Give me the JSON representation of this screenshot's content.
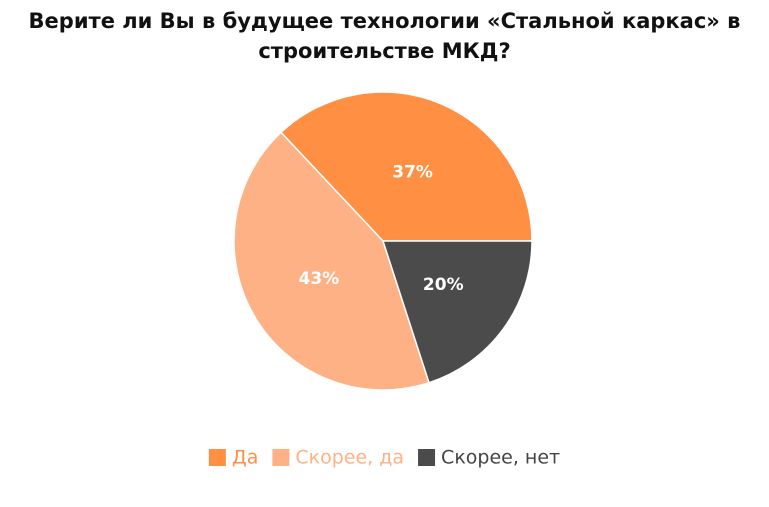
{
  "chart_data": {
    "type": "pie",
    "title": "Верите ли Вы в будущее технологии «Стальной каркас» в строительстве МКД?",
    "categories": [
      "Да",
      "Скорее, да",
      "Скорее, нет"
    ],
    "values": [
      37,
      43,
      20
    ],
    "value_labels": [
      "37%",
      "43%",
      "20%"
    ],
    "colors": [
      "#ff8f42",
      "#ffb186",
      "#4b4b4b"
    ],
    "legend": "bottom"
  }
}
